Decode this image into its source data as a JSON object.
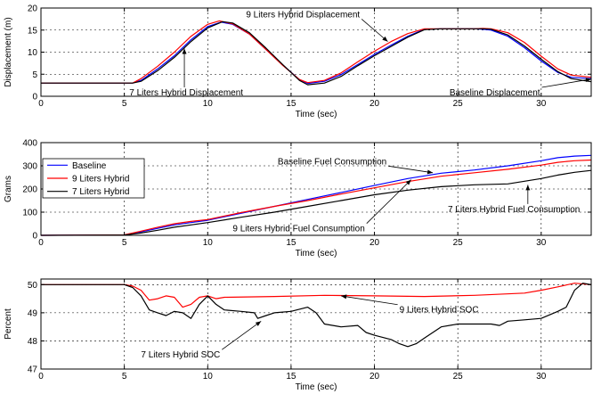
{
  "chart_data": [
    {
      "type": "line",
      "xlabel": "Time (sec)",
      "ylabel": "Displacement (m)",
      "xlim": [
        0,
        33
      ],
      "ylim": [
        0,
        20
      ],
      "xticks": [
        0,
        5,
        10,
        15,
        20,
        25,
        30
      ],
      "yticks": [
        0,
        5,
        10,
        15,
        20
      ],
      "grid": true,
      "series": [
        {
          "key": "baseline",
          "color": "#0000ff",
          "x": [
            0,
            5.5,
            6,
            7,
            8,
            9,
            10,
            10.8,
            11.5,
            12.5,
            13.5,
            14.5,
            15.5,
            16,
            17,
            18,
            19,
            20,
            21,
            22,
            23,
            24,
            25,
            26,
            26.5,
            27,
            28,
            29,
            30,
            31,
            31.8,
            33
          ],
          "y": [
            3,
            3,
            3.6,
            6.2,
            9.2,
            12.8,
            15.8,
            16.8,
            16.3,
            14.1,
            10.6,
            7.1,
            3.8,
            2.9,
            3.4,
            4.9,
            7.2,
            9.5,
            11.6,
            13.6,
            15.2,
            15.3,
            15.3,
            15.3,
            15.2,
            15.0,
            13.6,
            11.0,
            8.0,
            5.4,
            4.3,
            4.0
          ]
        },
        {
          "key": "h9",
          "color": "#ff0000",
          "x": [
            0,
            5.5,
            6,
            7,
            8,
            9,
            10,
            10.7,
            11.5,
            12.5,
            13.5,
            14.5,
            15.5,
            16,
            17,
            18,
            19,
            20,
            21,
            22,
            23,
            24,
            25,
            26,
            26.5,
            27,
            28,
            29,
            30,
            31,
            31.8,
            33
          ],
          "y": [
            3,
            3,
            4.0,
            6.8,
            10.0,
            13.6,
            16.3,
            17.1,
            16.4,
            14.1,
            10.6,
            7.0,
            3.8,
            3.1,
            3.6,
            5.3,
            7.8,
            10.2,
            12.4,
            14.2,
            15.3,
            15.3,
            15.3,
            15.3,
            15.4,
            15.3,
            14.4,
            12.2,
            9.1,
            6.2,
            4.8,
            4.3
          ]
        },
        {
          "key": "h7",
          "color": "#000000",
          "x": [
            0,
            5.5,
            6,
            7,
            8,
            9,
            10,
            10.9,
            11.5,
            12.5,
            13.5,
            14.5,
            15.5,
            16,
            17,
            18,
            19,
            20,
            21,
            22,
            23,
            24,
            25,
            26,
            26.5,
            27,
            28,
            29,
            30,
            31,
            31.8,
            33
          ],
          "y": [
            3,
            3,
            3.4,
            5.8,
            8.8,
            12.4,
            15.5,
            16.9,
            16.6,
            14.4,
            10.9,
            7.2,
            3.6,
            2.6,
            3.0,
            4.5,
            6.9,
            9.2,
            11.3,
            13.4,
            15.1,
            15.3,
            15.3,
            15.3,
            15.3,
            15.2,
            13.9,
            11.4,
            8.4,
            5.6,
            4.0,
            3.3
          ]
        }
      ],
      "annotations": [
        {
          "key": "h9_disp",
          "text": "9 Liters Hybrid Displacement",
          "x": 12.3,
          "y": 18.5,
          "ax": 20.8,
          "ay": 12.4
        },
        {
          "key": "h7_disp",
          "text": "7 Liters Hybrid Displacement",
          "x": 5.3,
          "y": 0.8,
          "ax": 8.6,
          "ay": 10.8
        },
        {
          "key": "base_disp",
          "text": "Baseline Displacement",
          "x": 24.5,
          "y": 0.8,
          "ax": 33,
          "ay": 3.9
        }
      ]
    },
    {
      "type": "line",
      "xlabel": "Time (sec)",
      "ylabel": "Grams",
      "xlim": [
        0,
        33
      ],
      "ylim": [
        0,
        400
      ],
      "xticks": [
        0,
        5,
        10,
        15,
        20,
        25,
        30
      ],
      "yticks": [
        0,
        100,
        200,
        300,
        400
      ],
      "grid": true,
      "legend": "top-left",
      "series": [
        {
          "key": "baseline",
          "name": "Baseline",
          "color": "#0000ff",
          "x": [
            0,
            5,
            6,
            7,
            8,
            9,
            10,
            12,
            14,
            16,
            18,
            20,
            22,
            24,
            26,
            28,
            30,
            31,
            32,
            33
          ],
          "y": [
            0,
            2,
            15,
            30,
            45,
            55,
            65,
            95,
            125,
            155,
            185,
            215,
            245,
            268,
            282,
            300,
            322,
            335,
            342,
            345
          ]
        },
        {
          "key": "h9",
          "name": "9 Liters Hybrid",
          "color": "#ff0000",
          "x": [
            0,
            5,
            6,
            7,
            8,
            9,
            10,
            12,
            14,
            16,
            18,
            20,
            22,
            24,
            26,
            28,
            30,
            31,
            32,
            33
          ],
          "y": [
            0,
            2,
            18,
            35,
            50,
            60,
            68,
            98,
            125,
            150,
            178,
            205,
            232,
            255,
            270,
            285,
            303,
            315,
            322,
            325
          ]
        },
        {
          "key": "h7",
          "name": "7 Liters Hybrid",
          "color": "#000000",
          "x": [
            0,
            5,
            6,
            7,
            8,
            9,
            10,
            12,
            14,
            16,
            18,
            20,
            22,
            24,
            26,
            28,
            30,
            31,
            32,
            33
          ],
          "y": [
            0,
            1,
            10,
            22,
            35,
            45,
            55,
            78,
            100,
            125,
            150,
            175,
            195,
            210,
            218,
            222,
            245,
            260,
            272,
            280
          ]
        }
      ],
      "annotations": [
        {
          "key": "base_fuel",
          "text": "Baseline Fuel Consumption",
          "x": 14.2,
          "y": 318,
          "ax": 23.5,
          "ay": 270
        },
        {
          "key": "h7_fuel",
          "text": "7 Liters Hybrid Fuel Consumption",
          "x": 24.4,
          "y": 112,
          "ax": 29.2,
          "ay": 218
        },
        {
          "key": "h9_fuel",
          "text": "9 Liters Hybrid Fuel Consumption",
          "x": 11.5,
          "y": 28,
          "ax": 22.2,
          "ay": 240
        }
      ]
    },
    {
      "type": "line",
      "xlabel": "Time (sec)",
      "ylabel": "Percent",
      "xlim": [
        0,
        33
      ],
      "ylim": [
        47,
        50.2
      ],
      "xticks": [
        0,
        5,
        10,
        15,
        20,
        25,
        30
      ],
      "yticks": [
        47,
        48,
        49,
        50
      ],
      "grid": true,
      "series": [
        {
          "key": "h9",
          "color": "#ff0000",
          "x": [
            0,
            5,
            5.5,
            6,
            6.5,
            7,
            7.5,
            8,
            8.5,
            9,
            9.5,
            10,
            10.5,
            11,
            14,
            17,
            20,
            23,
            26,
            29,
            30,
            31,
            32,
            33
          ],
          "y": [
            50,
            50,
            49.95,
            49.8,
            49.45,
            49.5,
            49.6,
            49.55,
            49.2,
            49.3,
            49.55,
            49.6,
            49.5,
            49.55,
            49.58,
            49.62,
            49.6,
            49.58,
            49.62,
            49.7,
            49.8,
            49.92,
            50.05,
            50.0
          ]
        },
        {
          "key": "h7",
          "color": "#000000",
          "x": [
            0,
            5,
            5.5,
            6,
            6.5,
            7,
            7.5,
            8,
            8.5,
            9,
            9.5,
            10,
            10.5,
            11,
            12,
            12.8,
            13,
            13.5,
            14,
            15,
            16,
            16.5,
            17,
            18,
            19,
            19.5,
            20,
            21,
            21.5,
            22,
            22.5,
            23,
            24,
            25,
            26,
            27,
            27.5,
            28,
            29,
            30,
            31,
            31.5,
            32,
            32.5,
            33
          ],
          "y": [
            50,
            50,
            49.9,
            49.6,
            49.1,
            49.0,
            48.9,
            49.05,
            49.0,
            48.8,
            49.3,
            49.6,
            49.3,
            49.1,
            49.05,
            49.0,
            48.8,
            48.9,
            49.0,
            49.05,
            49.2,
            49.0,
            48.6,
            48.5,
            48.55,
            48.3,
            48.2,
            48.05,
            47.9,
            47.8,
            47.9,
            48.1,
            48.5,
            48.6,
            48.6,
            48.6,
            48.55,
            48.7,
            48.75,
            48.8,
            49.05,
            49.2,
            49.8,
            50.05,
            50.0
          ]
        }
      ],
      "annotations": [
        {
          "key": "h9_soc",
          "text": "9 Liters Hybrid SOC",
          "x": 21.5,
          "y": 49.1,
          "ax": 18.0,
          "ay": 49.6
        },
        {
          "key": "h7_soc",
          "text": "7 Liters Hybrid SOC",
          "x": 6.0,
          "y": 47.5,
          "ax": 13.2,
          "ay": 48.7
        }
      ]
    }
  ]
}
